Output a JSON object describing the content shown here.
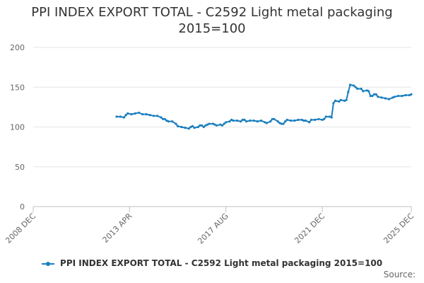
{
  "chart_data": {
    "type": "line",
    "title_lines": [
      "PPI INDEX EXPORT TOTAL - C2592 Light metal packaging",
      "2015=100"
    ],
    "xlabel": "",
    "ylabel": "",
    "ylim": [
      0,
      200
    ],
    "yticks": [
      "0",
      "50",
      "100",
      "150",
      "200"
    ],
    "xlim": [
      "2008-12",
      "2025-12"
    ],
    "xticks": [
      {
        "date": "2008-12",
        "label": "2008 DEC"
      },
      {
        "date": "2013-04",
        "label": "2013 APR"
      },
      {
        "date": "2017-08",
        "label": "2017 AUG"
      },
      {
        "date": "2021-12",
        "label": "2021 DEC"
      },
      {
        "date": "2025-12",
        "label": "2025 DEC"
      }
    ],
    "grid": "horizontal",
    "legend_position": "bottom",
    "series": [
      {
        "name": "PPI INDEX EXPORT TOTAL - C2592 Light metal packaging 2015=100",
        "color": "#1a7fbf",
        "points": [
          [
            "2012-09",
            113
          ],
          [
            "2012-11",
            113
          ],
          [
            "2013-01",
            112
          ],
          [
            "2013-02",
            115
          ],
          [
            "2013-03",
            117
          ],
          [
            "2013-05",
            116
          ],
          [
            "2013-07",
            117
          ],
          [
            "2013-09",
            118
          ],
          [
            "2013-11",
            116
          ],
          [
            "2014-01",
            116
          ],
          [
            "2014-03",
            115
          ],
          [
            "2014-05",
            114
          ],
          [
            "2014-07",
            114
          ],
          [
            "2014-09",
            112
          ],
          [
            "2014-10",
            110
          ],
          [
            "2014-11",
            110
          ],
          [
            "2014-12",
            108
          ],
          [
            "2015-01",
            107
          ],
          [
            "2015-03",
            107
          ],
          [
            "2015-05",
            104
          ],
          [
            "2015-06",
            101
          ],
          [
            "2015-08",
            100
          ],
          [
            "2015-10",
            99
          ],
          [
            "2015-12",
            98
          ],
          [
            "2016-01",
            100
          ],
          [
            "2016-02",
            101
          ],
          [
            "2016-03",
            99
          ],
          [
            "2016-05",
            100
          ],
          [
            "2016-06",
            102
          ],
          [
            "2016-07",
            102
          ],
          [
            "2016-08",
            100
          ],
          [
            "2016-09",
            102
          ],
          [
            "2016-10",
            103
          ],
          [
            "2016-11",
            104
          ],
          [
            "2017-01",
            104
          ],
          [
            "2017-02",
            103
          ],
          [
            "2017-03",
            102
          ],
          [
            "2017-05",
            103
          ],
          [
            "2017-06",
            102
          ],
          [
            "2017-07",
            104
          ],
          [
            "2017-08",
            106
          ],
          [
            "2017-10",
            107
          ],
          [
            "2017-11",
            109
          ],
          [
            "2017-12",
            108
          ],
          [
            "2018-02",
            108
          ],
          [
            "2018-04",
            107
          ],
          [
            "2018-05",
            109
          ],
          [
            "2018-06",
            109
          ],
          [
            "2018-07",
            107
          ],
          [
            "2018-09",
            108
          ],
          [
            "2018-11",
            108
          ],
          [
            "2019-01",
            107
          ],
          [
            "2019-03",
            108
          ],
          [
            "2019-05",
            106
          ],
          [
            "2019-06",
            105
          ],
          [
            "2019-08",
            107
          ],
          [
            "2019-09",
            110
          ],
          [
            "2019-10",
            110
          ],
          [
            "2019-12",
            107
          ],
          [
            "2020-01",
            105
          ],
          [
            "2020-02",
            104
          ],
          [
            "2020-03",
            104
          ],
          [
            "2020-04",
            107
          ],
          [
            "2020-05",
            109
          ],
          [
            "2020-07",
            108
          ],
          [
            "2020-09",
            108
          ],
          [
            "2020-11",
            109
          ],
          [
            "2021-01",
            109
          ],
          [
            "2021-02",
            108
          ],
          [
            "2021-03",
            108
          ],
          [
            "2021-05",
            106
          ],
          [
            "2021-06",
            109
          ],
          [
            "2021-08",
            109
          ],
          [
            "2021-10",
            110
          ],
          [
            "2021-12",
            109
          ],
          [
            "2022-01",
            110
          ],
          [
            "2022-02",
            113
          ],
          [
            "2022-04",
            113
          ],
          [
            "2022-05",
            112
          ],
          [
            "2022-06",
            130
          ],
          [
            "2022-07",
            133
          ],
          [
            "2022-09",
            132
          ],
          [
            "2022-10",
            134
          ],
          [
            "2022-12",
            133
          ],
          [
            "2023-01",
            134
          ],
          [
            "2023-02",
            144
          ],
          [
            "2023-03",
            153
          ],
          [
            "2023-05",
            152
          ],
          [
            "2023-06",
            150
          ],
          [
            "2023-07",
            148
          ],
          [
            "2023-09",
            148
          ],
          [
            "2023-10",
            145
          ],
          [
            "2023-12",
            146
          ],
          [
            "2024-01",
            145
          ],
          [
            "2024-02",
            139
          ],
          [
            "2024-03",
            139
          ],
          [
            "2024-04",
            141
          ],
          [
            "2024-05",
            141
          ],
          [
            "2024-06",
            138
          ],
          [
            "2024-08",
            137
          ],
          [
            "2024-10",
            136
          ],
          [
            "2024-12",
            135
          ],
          [
            "2025-02",
            137
          ],
          [
            "2025-03",
            138
          ],
          [
            "2025-05",
            139
          ],
          [
            "2025-07",
            139
          ],
          [
            "2025-09",
            140
          ],
          [
            "2025-11",
            140
          ],
          [
            "2025-12",
            141
          ]
        ]
      }
    ]
  },
  "source_label": "Source:"
}
